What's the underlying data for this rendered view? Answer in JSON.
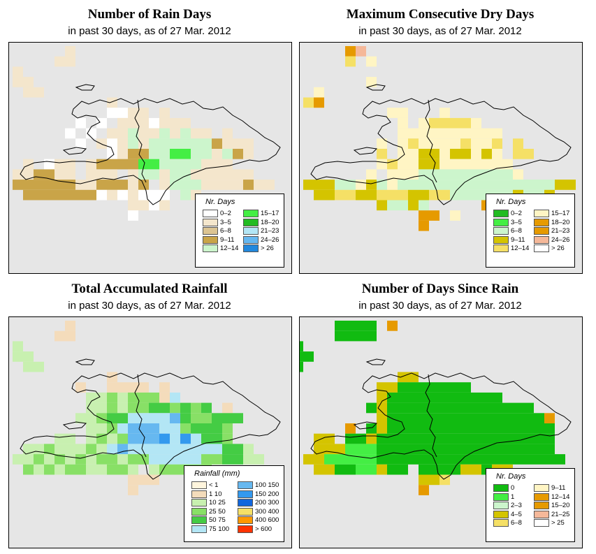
{
  "panels": [
    {
      "id": "rain-days",
      "title": "Number of Rain Days",
      "subtitle": "in past 30 days, as of  27 Mar. 2012",
      "legend": {
        "title": "Nr. Days",
        "items": [
          {
            "label": "0–2",
            "color": "#ffffff"
          },
          {
            "label": "3–5",
            "color": "#f4e6cc"
          },
          {
            "label": "6–8",
            "color": "#dcc492"
          },
          {
            "label": "9–11",
            "color": "#c9a448"
          },
          {
            "label": "12–14",
            "color": "#ccf5cc"
          },
          {
            "label": "15–17",
            "color": "#44ee44"
          },
          {
            "label": "18–20",
            "color": "#22bb22"
          },
          {
            "label": "21–23",
            "color": "#b3e6f5"
          },
          {
            "label": "24–26",
            "color": "#66b8f0"
          },
          {
            "label": "> 26",
            "color": "#2288dd"
          }
        ]
      },
      "grid": [
        "......3.....................",
        ".....33.....................",
        ".3..........................",
        ".33.........................",
        "..33........................",
        "..........3.................",
        "..........1133.3............",
        ".......1.1.3331333..........",
        "......1.1.33C33C3C33.3......",
        ".......1.313C3CCCCCC4333....",
        "..........1344CCFFCC3C43.....",
        "..3.133.34444FFCCCC333.....",
        ".334433.333.3CC3CC333333....",
        ".4444443344434.3CCC3333433..",
        "..44444441313111.C3.........",
        "............3313............",
        "............1..............."
      ]
    },
    {
      "id": "max-dry",
      "title": "Maximum Consecutive Dry Days",
      "subtitle": "in past 30 days, as of  27 Mar. 2012",
      "legend": {
        "title": "Nr. Days",
        "items": [
          {
            "label": "0–2",
            "color": "#22bb22"
          },
          {
            "label": "3–5",
            "color": "#44ee44"
          },
          {
            "label": "6–8",
            "color": "#ccf5cc"
          },
          {
            "label": "9–11",
            "color": "#d4c400"
          },
          {
            "label": "12–14",
            "color": "#f5e066"
          },
          {
            "label": "15–17",
            "color": "#fff5c4"
          },
          {
            "label": "18–20",
            "color": "#e69a00"
          },
          {
            "label": "21–23",
            "color": "#e69a00"
          },
          {
            "label": "24–26",
            "color": "#f5b899"
          },
          {
            "label": "> 26",
            "color": "#ffffff"
          }
        ]
      },
      "grid": [
        ".....8E.....................",
        ".....I.7....................",
        "...........................",
        ".......7....................",
        "..7.........................",
        ".I8.........................",
        ".........66...6.............",
        "..........7.6IIII7..........",
        "..........7777777777........",
        "........6.6I6666I66I.I......",
        "........I.66DD7DD7D6.II.....",
        "........6I66DD7666767.......",
        ".......7.776CCCCCCCCC6......",
        ".DDDCC6DC7CCCCCCCCCCCCCCCDD..",
        "..DDIIDDIIIDDIICCCCCCDCCD..",
        "........DCCDC.....8D.C8.....",
        "............88.7...........",
        "............8.............."
      ]
    },
    {
      "id": "total-rain",
      "title": "Total Accumulated Rainfall",
      "subtitle": "in past 30 days, as of  27 Mar. 2012",
      "legend": {
        "title": "Rainfall (mm)",
        "items": [
          {
            "label": "< 1",
            "color": "#fff5dd"
          },
          {
            "label": "1    10",
            "color": "#f4dcbb"
          },
          {
            "label": "10    25",
            "color": "#c8f0b0"
          },
          {
            "label": "25    50",
            "color": "#88e066"
          },
          {
            "label": "50    75",
            "color": "#44cc44"
          },
          {
            "label": "75   100",
            "color": "#b3e6f5"
          },
          {
            "label": "100   150",
            "color": "#66b8f0"
          },
          {
            "label": "150   200",
            "color": "#3399ee"
          },
          {
            "label": "200   300",
            "color": "#1166dd"
          },
          {
            "label": "300   400",
            "color": "#f5e066"
          },
          {
            "label": "400   600",
            "color": "#ff9900"
          },
          {
            "label": "> 600",
            "color": "#ff3300"
          }
        ]
      },
      "grid": [
        "......b.....................",
        ".....bb.....................",
        ".c..........................",
        ".cc.........................",
        "..cc........................",
        "..........b.................",
        ".......b..bbbb.b............",
        "........ccdcdddbf...........",
        "........ccdcddeedede.b......",
        ".......ccdeeffffgeddeee.....",
        "........ccdfgggffdeeed.......",
        ".....cc.cdcdggghfhfeed......",
        "..ccdcccdcfgfffffffffeec....",
        ".ccdcdcdcddcddfffffddeecc..",
        "..dcdcddccddc.cddddd......",
        "............bbb.............",
        "............b..............."
      ]
    },
    {
      "id": "since-rain",
      "title": "Number of Days Since Rain",
      "subtitle": "in past 30 days, as of  27 Mar. 2012",
      "legend": {
        "title": "Nr. Days",
        "items": [
          {
            "label": "0",
            "color": "#11bb11"
          },
          {
            "label": "1",
            "color": "#44ee44"
          },
          {
            "label": "2–3",
            "color": "#ccf5cc"
          },
          {
            "label": "4–5",
            "color": "#d4c400"
          },
          {
            "label": "6–8",
            "color": "#f5e066"
          },
          {
            "label": "9–11",
            "color": "#fff5c4"
          },
          {
            "label": "12–14",
            "color": "#e69a00"
          },
          {
            "label": "15–20",
            "color": "#e69a00"
          },
          {
            "label": "21–25",
            "color": "#f5b899"
          },
          {
            "label": "> 25",
            "color": "#ffffff"
          }
        ]
      },
      "grid": [
        "....0000.7..................",
        "....0000....................",
        "0...........................",
        "00..........................",
        "0...........................",
        "..........DD................",
        "........DD0000000...........",
        "........D00000000000........",
        ".......0D00000000000000.....",
        "........D0000000000000007...",
        ".....7.0D0000000000000000....",
        "..DD.00D00000000000000000....",
        "..DDD11100000000000000000....",
        ".DD11111000000000000000000..",
        "..DD0011D00.0000DD0DD......",
        "............DDE.............",
        "............7..............."
      ]
    }
  ]
}
